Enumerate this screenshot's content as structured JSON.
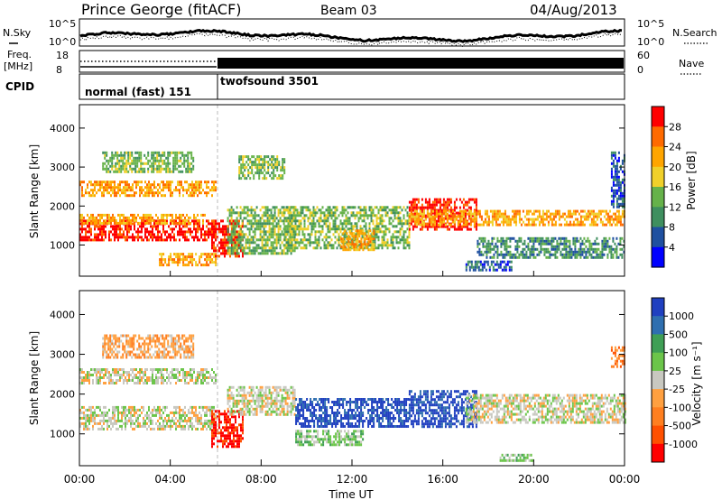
{
  "header": {
    "station": "Prince George (fitACF)",
    "beam": "Beam 03",
    "date": "04/Aug/2013"
  },
  "top_panel": {
    "left_label": "N.Sky",
    "right_label": "N.Search",
    "left_ticks": [
      "10^5",
      "10^0"
    ],
    "right_ticks": [
      "10^5",
      "10^0"
    ]
  },
  "freq_panel": {
    "left_label_1": "Freq.",
    "left_label_2": "[MHz]",
    "left_ticks": [
      "18",
      "8"
    ],
    "right_label": "Nave",
    "right_ticks": [
      "60",
      "0"
    ]
  },
  "cpid": {
    "label": "CPID",
    "modes": [
      "normal (fast) 151",
      "twofsound 3501"
    ]
  },
  "colors": {
    "power": [
      "#0000ff",
      "#1f50a0",
      "#3f8f5f",
      "#66b24a",
      "#f0d02a",
      "#ffa500",
      "#ff6a00",
      "#ff0000"
    ],
    "velocity": [
      "#2040c0",
      "#2f6fb0",
      "#3f9f55",
      "#6bc54a",
      "#c8c8c0",
      "#ffa040",
      "#ff7f20",
      "#ff5000",
      "#ff0000"
    ]
  },
  "chart_data": [
    {
      "type": "heatmap",
      "name": "Power",
      "ylabel": "Slant Range [km]",
      "ylim": [
        200,
        4600
      ],
      "yticks": [
        "1000",
        "2000",
        "3000",
        "4000"
      ],
      "xlim": [
        0,
        24
      ],
      "colorbar": {
        "label": "Power [dB]",
        "ticks": [
          "4",
          "8",
          "12",
          "16",
          "20",
          "24",
          "28"
        ]
      },
      "regions": [
        {
          "t": [
            0.0,
            6.0
          ],
          "r": [
            1150,
            1650
          ],
          "level": 7
        },
        {
          "t": [
            0.0,
            5.5
          ],
          "r": [
            1550,
            1800
          ],
          "level": 5
        },
        {
          "t": [
            0.0,
            6.0
          ],
          "r": [
            2300,
            2650
          ],
          "level": 5
        },
        {
          "t": [
            1.0,
            5.0
          ],
          "r": [
            2900,
            3400
          ],
          "level": 3
        },
        {
          "t": [
            3.5,
            6.0
          ],
          "r": [
            500,
            800
          ],
          "level": 5
        },
        {
          "t": [
            5.8,
            7.2
          ],
          "r": [
            700,
            1650
          ],
          "level": 7
        },
        {
          "t": [
            6.5,
            9.5
          ],
          "r": [
            800,
            2000
          ],
          "level": 3
        },
        {
          "t": [
            7.0,
            9.0
          ],
          "r": [
            2700,
            3300
          ],
          "level": 3
        },
        {
          "t": [
            9.0,
            14.5
          ],
          "r": [
            900,
            2000
          ],
          "level": 3
        },
        {
          "t": [
            11.5,
            13.0
          ],
          "r": [
            900,
            1400
          ],
          "level": 5
        },
        {
          "t": [
            14.5,
            17.5
          ],
          "r": [
            1400,
            2200
          ],
          "level": 7
        },
        {
          "t": [
            14.5,
            24.0
          ],
          "r": [
            1500,
            1900
          ],
          "level": 5
        },
        {
          "t": [
            17.5,
            24.0
          ],
          "r": [
            700,
            1200
          ],
          "level": 2
        },
        {
          "t": [
            17.0,
            19.0
          ],
          "r": [
            350,
            600
          ],
          "level": 1
        },
        {
          "t": [
            23.4,
            24.0
          ],
          "r": [
            2000,
            3400
          ],
          "level": 1
        }
      ]
    },
    {
      "type": "heatmap",
      "name": "Velocity",
      "ylabel": "Slant Range [km]",
      "ylim": [
        200,
        4600
      ],
      "yticks": [
        "1000",
        "2000",
        "3000",
        "4000"
      ],
      "xlim": [
        0,
        24
      ],
      "xlabel": "Time UT",
      "xticks": [
        "00:00",
        "04:00",
        "08:00",
        "12:00",
        "16:00",
        "20:00",
        "00:00"
      ],
      "colorbar": {
        "label": "Velocity [m s⁻¹]",
        "ticks": [
          "1000",
          "500",
          "100",
          "25",
          "-25",
          "-100",
          "-500",
          "-1000"
        ]
      },
      "regions": [
        {
          "t": [
            0.0,
            6.0
          ],
          "r": [
            1100,
            1700
          ],
          "level": 4
        },
        {
          "t": [
            0.0,
            6.0
          ],
          "r": [
            2300,
            2650
          ],
          "level": 4
        },
        {
          "t": [
            1.0,
            5.0
          ],
          "r": [
            2900,
            3500
          ],
          "level": 5
        },
        {
          "t": [
            5.8,
            7.2
          ],
          "r": [
            700,
            1600
          ],
          "level": 8
        },
        {
          "t": [
            6.5,
            9.5
          ],
          "r": [
            1500,
            2200
          ],
          "level": 4
        },
        {
          "t": [
            9.5,
            14.5
          ],
          "r": [
            1200,
            1900
          ],
          "level": 0
        },
        {
          "t": [
            9.5,
            12.5
          ],
          "r": [
            700,
            1100
          ],
          "level": 3
        },
        {
          "t": [
            14.5,
            17.5
          ],
          "r": [
            1200,
            2100
          ],
          "level": 0
        },
        {
          "t": [
            17.0,
            24.0
          ],
          "r": [
            1300,
            2000
          ],
          "level": 4
        },
        {
          "t": [
            18.5,
            20.0
          ],
          "r": [
            300,
            500
          ],
          "level": 3
        },
        {
          "t": [
            23.4,
            24.0
          ],
          "r": [
            2700,
            3200
          ],
          "level": 6
        }
      ]
    }
  ]
}
